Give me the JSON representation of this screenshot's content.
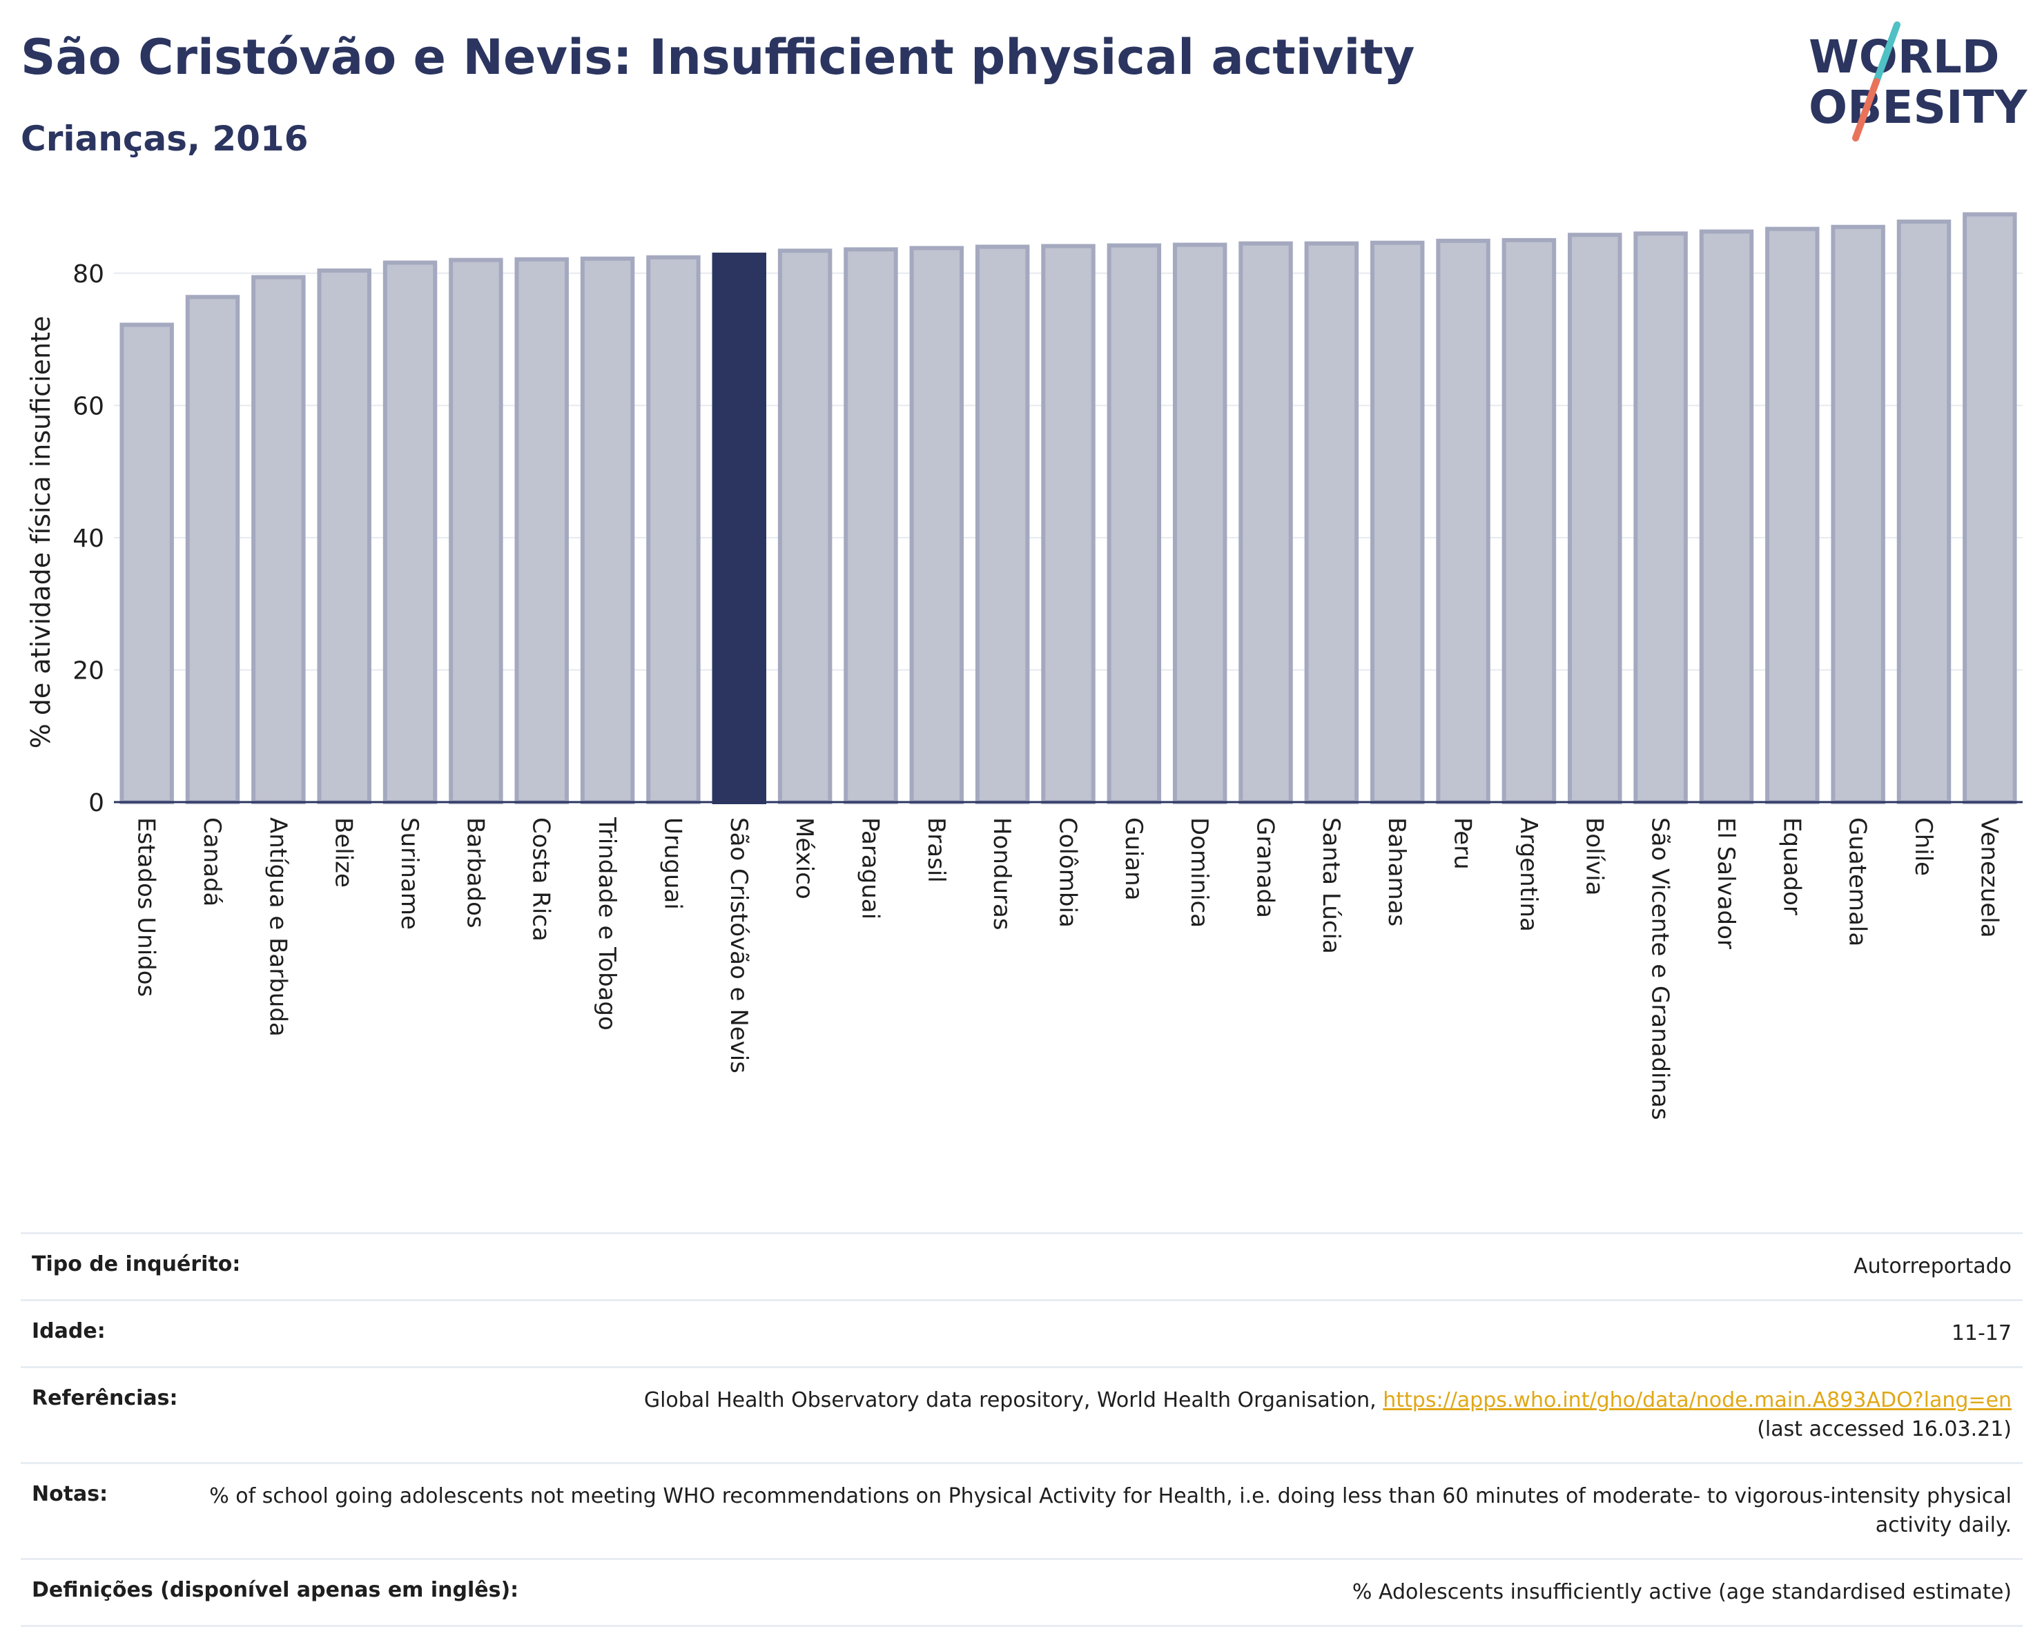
{
  "header": {
    "title": "São Cristóvão e Nevis: Insufficient physical activity",
    "subtitle": "Crianças, 2016"
  },
  "logo": {
    "line1": "WORLD",
    "line2": "OBESITY",
    "accent_colors": [
      "#4fc1c4",
      "#e8735a"
    ]
  },
  "colors": {
    "highlight_bar": "#2b3560",
    "normal_bar_fill": "#c0c3d0",
    "normal_bar_stroke": "#a4a9bf",
    "title": "#2b3560",
    "link": "#e0a817"
  },
  "chart_data": {
    "type": "bar",
    "title": "",
    "xlabel": "",
    "ylabel": "% de atividade física insuficiente",
    "ylim": [
      0,
      90
    ],
    "yticks": [
      0,
      20,
      40,
      60,
      80
    ],
    "grid": true,
    "legend": "none",
    "highlight": "São Cristóvão e Nevis",
    "categories": [
      "Estados Unidos",
      "Canadá",
      "Antígua e Barbuda",
      "Belize",
      "Suriname",
      "Barbados",
      "Costa Rica",
      "Trindade e Tobago",
      "Uruguai",
      "São Cristóvão e Nevis",
      "México",
      "Paraguai",
      "Brasil",
      "Honduras",
      "Colômbia",
      "Guiana",
      "Dominica",
      "Granada",
      "Santa Lúcia",
      "Bahamas",
      "Peru",
      "Argentina",
      "Bolívia",
      "São Vicente e Granadinas",
      "El Salvador",
      "Equador",
      "Guatemala",
      "Chile",
      "Venezuela"
    ],
    "values": [
      72.2,
      76.4,
      79.4,
      80.4,
      81.6,
      82.0,
      82.1,
      82.2,
      82.4,
      82.8,
      83.4,
      83.6,
      83.8,
      84.0,
      84.1,
      84.2,
      84.3,
      84.5,
      84.5,
      84.6,
      84.9,
      85.0,
      85.8,
      86.0,
      86.3,
      86.7,
      87.0,
      87.8,
      88.9
    ]
  },
  "info": {
    "survey_type_label": "Tipo de inquérito:",
    "survey_type_value": "Autorreportado",
    "age_label": "Idade:",
    "age_value": "11-17",
    "references_label": "Referências:",
    "references_text": "Global Health Observatory data repository, World Health Organisation,",
    "references_link": "https://apps.who.int/gho/data/node.main.A893ADO?lang=en",
    "references_accessed": "(last accessed 16.03.21)",
    "notes_label": "Notas:",
    "notes_value": "% of school going adolescents not meeting WHO recommendations on Physical Activity for Health, i.e. doing less than 60 minutes of moderate- to vigorous-intensity physical activity daily.",
    "definitions_label": "Definições (disponível apenas em inglês):",
    "definitions_value": "% Adolescents insufficiently active (age standardised estimate)"
  }
}
